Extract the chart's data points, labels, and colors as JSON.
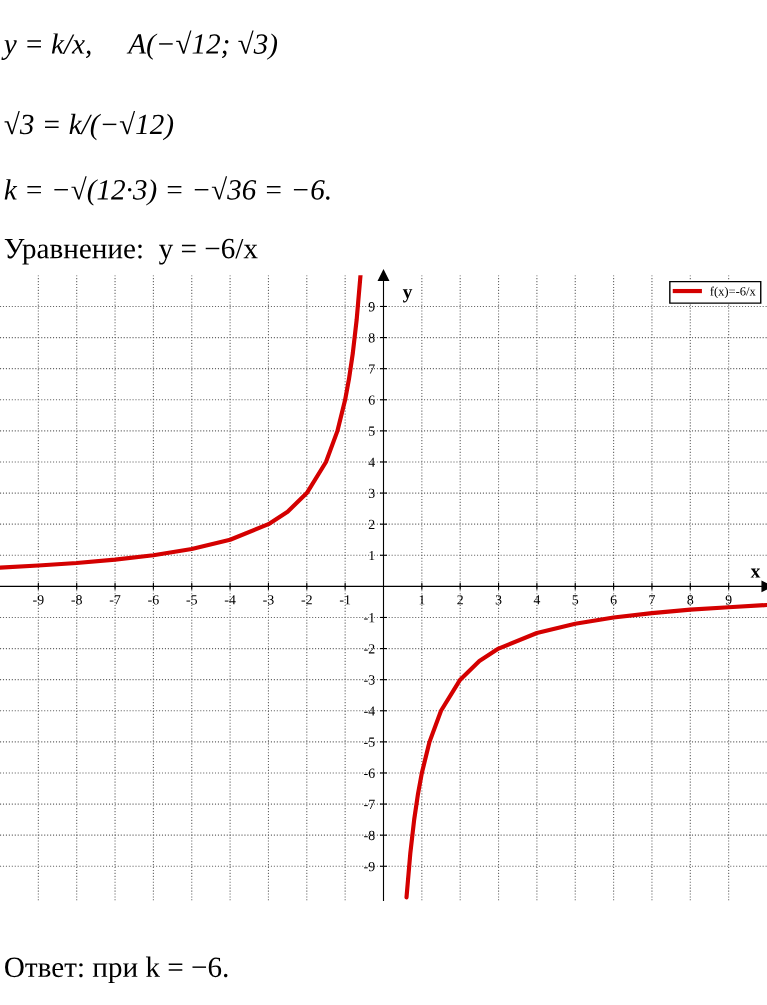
{
  "chart_data": {
    "type": "line",
    "xlabel": "x",
    "ylabel": "y",
    "annotations": [
      "y = k/x,     A(−√12; √3)",
      "√3 = k/(−√12)",
      "k = −√(12·3) = −√36 = −6.",
      "Уравнение:  y = −6/x",
      "Ответ: при k = −6."
    ],
    "x": [
      -10,
      -9,
      -8,
      -7,
      -6,
      -5,
      -4,
      -3,
      -2.5,
      -2,
      -1.5,
      -1.2,
      -1,
      -0.9,
      -0.8,
      -0.7,
      -0.6,
      0,
      0.6,
      0.7,
      0.8,
      0.9,
      1,
      1.2,
      1.5,
      2,
      2.5,
      3,
      4,
      5,
      6,
      7,
      8,
      9,
      10
    ],
    "series": [
      {
        "name": "f(x)=-6/x",
        "color": "#d40000",
        "values": [
          0.6,
          0.67,
          0.75,
          0.86,
          1,
          1.2,
          1.5,
          2,
          2.4,
          3,
          4,
          5,
          6,
          6.67,
          7.5,
          8.57,
          10,
          null,
          -10,
          -8.57,
          -7.5,
          -6.67,
          -6,
          -5,
          -4,
          -3,
          -2.4,
          -2,
          -1.5,
          -1.2,
          -1,
          -0.86,
          -0.75,
          -0.67,
          -0.6
        ]
      }
    ],
    "xlim": [
      -10,
      10
    ],
    "ylim": [
      -10.1,
      10
    ],
    "xticks": [
      -9,
      -8,
      -7,
      -6,
      -5,
      -4,
      -3,
      -2,
      -1,
      1,
      2,
      3,
      4,
      5,
      6,
      7,
      8,
      9
    ],
    "yticks": [
      -9,
      -8,
      -7,
      -6,
      -5,
      -4,
      -3,
      -2,
      -1,
      1,
      2,
      3,
      4,
      5,
      6,
      7,
      8,
      9
    ],
    "grid": true,
    "legend": "top right",
    "marker": "none",
    "line_style": "solid"
  }
}
